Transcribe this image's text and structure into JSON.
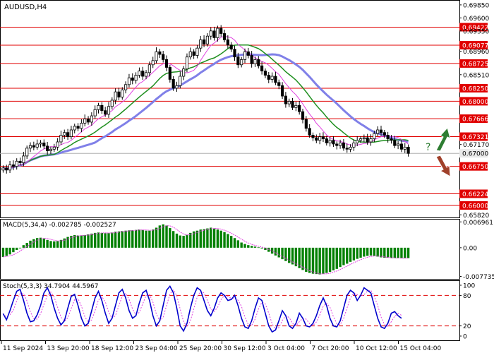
{
  "chart_data": [
    {
      "type": "candlestick",
      "title": "AUDUSD,H4",
      "x_tick_labels": [
        "11 Sep 2024",
        "13 Sep 20:00",
        "18 Sep 12:00",
        "23 Sep 04:00",
        "25 Sep 20:00",
        "30 Sep 12:00",
        "3 Oct 04:00",
        "7 Oct 20:00",
        "10 Oct 12:00",
        "15 Oct 04:00"
      ],
      "y_tick_labels": [
        "0.69850",
        "0.69600",
        "0.69350",
        "0.69077",
        "0.68960",
        "0.68725",
        "0.68510",
        "0.68250",
        "0.68000",
        "0.67666",
        "0.67321",
        "0.67170",
        "0.67000",
        "0.66750",
        "0.66224",
        "0.66000",
        "0.65820"
      ],
      "ylim": [
        0.6577,
        0.6993
      ],
      "levels": [
        {
          "value": 0.69422,
          "label": "0.69422",
          "style": "red-line"
        },
        {
          "value": 0.69077,
          "label": "0.69077",
          "style": "red-line"
        },
        {
          "value": 0.68725,
          "label": "0.68725",
          "style": "red-line"
        },
        {
          "value": 0.6825,
          "label": "0.68250",
          "style": "red-line"
        },
        {
          "value": 0.68,
          "label": "0.68000",
          "style": "red-line"
        },
        {
          "value": 0.67666,
          "label": "0.67666",
          "style": "red-line"
        },
        {
          "value": 0.67321,
          "label": "0.67321",
          "style": "red-line"
        },
        {
          "value": 0.67,
          "label": "0.67000",
          "style": "current-price"
        },
        {
          "value": 0.6675,
          "label": "0.66750",
          "style": "red-line"
        },
        {
          "value": 0.66224,
          "label": "0.66224",
          "style": "red-line"
        },
        {
          "value": 0.66,
          "label": "0.66000",
          "style": "red-line"
        }
      ],
      "price_closes": [
        0.6672,
        0.6668,
        0.6678,
        0.6675,
        0.6685,
        0.6682,
        0.6695,
        0.671,
        0.6715,
        0.6712,
        0.6718,
        0.672,
        0.6714,
        0.6705,
        0.6708,
        0.6712,
        0.6722,
        0.6735,
        0.674,
        0.6732,
        0.6745,
        0.6752,
        0.6748,
        0.6758,
        0.6766,
        0.676,
        0.6772,
        0.6784,
        0.6792,
        0.6782,
        0.6775,
        0.679,
        0.6802,
        0.6818,
        0.6808,
        0.6822,
        0.6832,
        0.6845,
        0.684,
        0.685,
        0.6858,
        0.6848,
        0.6855,
        0.687,
        0.6878,
        0.6895,
        0.689,
        0.688,
        0.6865,
        0.6842,
        0.6825,
        0.683,
        0.6848,
        0.6862,
        0.6885,
        0.6895,
        0.6888,
        0.6902,
        0.6918,
        0.691,
        0.6925,
        0.6935,
        0.6922,
        0.694,
        0.693,
        0.6918,
        0.6908,
        0.69,
        0.6885,
        0.687,
        0.688,
        0.6895,
        0.6888,
        0.6872,
        0.688,
        0.6868,
        0.6858,
        0.685,
        0.6842,
        0.6848,
        0.6836,
        0.683,
        0.681,
        0.6795,
        0.68,
        0.6788,
        0.6792,
        0.678,
        0.6765,
        0.6748,
        0.6735,
        0.673,
        0.6725,
        0.6732,
        0.6728,
        0.672,
        0.6725,
        0.6718,
        0.6715,
        0.672,
        0.671,
        0.6708,
        0.6712,
        0.672,
        0.6725,
        0.6728,
        0.673,
        0.6722,
        0.6728,
        0.6738,
        0.6745,
        0.674,
        0.6735,
        0.6728,
        0.6725,
        0.6715,
        0.6718,
        0.6708,
        0.6712,
        0.67
      ],
      "indicators": [
        {
          "name": "MA fast",
          "color": "#e040e0"
        },
        {
          "name": "MA medium",
          "color": "#1f8f1f"
        },
        {
          "name": "MA slow",
          "color": "#8080e8"
        }
      ],
      "forecast_arrows": {
        "up_color": "#2e7d32",
        "down_color": "#a0402a",
        "question_mark": "?"
      }
    },
    {
      "type": "histogram",
      "title": "MACD(5,34,4) -0.002785 -0.002527",
      "y_tick_labels": [
        "0.006961",
        "0.00",
        "-0.007735"
      ],
      "ylim": [
        -0.0084,
        0.0074
      ],
      "series": [
        {
          "type": "bar",
          "color": "#008000",
          "values": [
            -0.0025,
            -0.0022,
            -0.0018,
            -0.0012,
            -0.0006,
            0.0,
            0.0007,
            0.0013,
            0.0019,
            0.0023,
            0.0026,
            0.0027,
            0.0025,
            0.0021,
            0.0018,
            0.0017,
            0.0018,
            0.0021,
            0.0025,
            0.0029,
            0.0032,
            0.0034,
            0.0033,
            0.0033,
            0.0034,
            0.0036,
            0.0038,
            0.004,
            0.0041,
            0.004,
            0.0039,
            0.0039,
            0.0041,
            0.0043,
            0.0044,
            0.0045,
            0.0046,
            0.0047,
            0.0047,
            0.0048,
            0.0049,
            0.0048,
            0.0046,
            0.0046,
            0.0049,
            0.0054,
            0.006,
            0.0063,
            0.006,
            0.0053,
            0.0045,
            0.0038,
            0.0033,
            0.0032,
            0.0035,
            0.004,
            0.0044,
            0.0046,
            0.0049,
            0.005,
            0.0052,
            0.0054,
            0.0052,
            0.0049,
            0.0046,
            0.0042,
            0.0037,
            0.0032,
            0.0026,
            0.002,
            0.0014,
            0.001,
            0.0007,
            0.0005,
            0.0003,
            0.0001,
            -0.0002,
            -0.0006,
            -0.0011,
            -0.0016,
            -0.0021,
            -0.0026,
            -0.0031,
            -0.0036,
            -0.0041,
            -0.0045,
            -0.005,
            -0.0055,
            -0.006,
            -0.0065,
            -0.0068,
            -0.007,
            -0.0071,
            -0.0072,
            -0.007,
            -0.0068,
            -0.0065,
            -0.0061,
            -0.0057,
            -0.0052,
            -0.0047,
            -0.0043,
            -0.0038,
            -0.0034,
            -0.003,
            -0.0027,
            -0.0024,
            -0.0022,
            -0.0021,
            -0.0022,
            -0.0024,
            -0.0026,
            -0.0027,
            -0.0027,
            -0.0028,
            -0.0028,
            -0.0028,
            -0.0028,
            -0.0028,
            -0.0028
          ]
        },
        {
          "type": "line",
          "color": "#e040e0"
        }
      ]
    },
    {
      "type": "line",
      "title": "Stoch(5,3,3) 34.7904 44.5967",
      "y_tick_labels": [
        "100",
        "80",
        "20",
        "0"
      ],
      "ylim": [
        0,
        100
      ],
      "levels": [
        80,
        20
      ],
      "series": [
        {
          "name": "main",
          "color": "#0000cc",
          "values": [
            44,
            32,
            50,
            70,
            88,
            92,
            70,
            45,
            28,
            30,
            42,
            60,
            85,
            95,
            80,
            55,
            35,
            22,
            30,
            55,
            78,
            82,
            60,
            35,
            20,
            25,
            50,
            75,
            88,
            70,
            45,
            25,
            35,
            60,
            85,
            92,
            75,
            50,
            35,
            40,
            65,
            85,
            90,
            70,
            40,
            20,
            30,
            60,
            90,
            98,
            85,
            55,
            20,
            10,
            25,
            55,
            80,
            95,
            90,
            70,
            50,
            40,
            55,
            75,
            85,
            80,
            70,
            72,
            80,
            60,
            35,
            18,
            15,
            30,
            55,
            75,
            70,
            45,
            20,
            8,
            12,
            30,
            50,
            40,
            20,
            15,
            25,
            45,
            35,
            20,
            18,
            25,
            40,
            60,
            75,
            60,
            35,
            20,
            18,
            30,
            55,
            80,
            90,
            85,
            70,
            80,
            95,
            90,
            85,
            60,
            35,
            18,
            15,
            25,
            45,
            48,
            40,
            35
          ]
        },
        {
          "name": "signal",
          "color": "#e040e0"
        }
      ]
    }
  ]
}
